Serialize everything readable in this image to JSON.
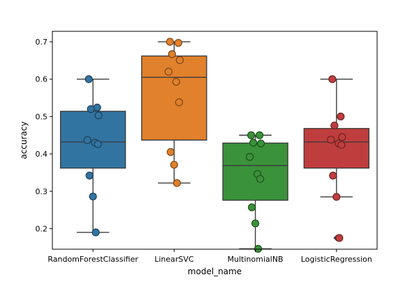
{
  "chart_data": {
    "type": "box",
    "overlay": "strip",
    "xlabel": "model_name",
    "ylabel": "accuracy",
    "ylim": [
      0.145,
      0.728
    ],
    "yticks": [
      0.2,
      0.3,
      0.4,
      0.5,
      0.6,
      0.7
    ],
    "ytick_labels": [
      "0.2",
      "0.3",
      "0.4",
      "0.5",
      "0.6",
      "0.7"
    ],
    "categories": [
      "RandomForestClassifier",
      "LinearSVC",
      "MultinomialNB",
      "LogisticRegression"
    ],
    "colors": [
      "#3274a1",
      "#e1812c",
      "#3a923a",
      "#c03d3e"
    ],
    "boxes": [
      {
        "q1": 0.362,
        "median": 0.432,
        "q3": 0.514,
        "whisker_low": 0.19,
        "whisker_high": 0.6,
        "fliers": []
      },
      {
        "q1": 0.437,
        "median": 0.605,
        "q3": 0.662,
        "whisker_low": 0.322,
        "whisker_high": 0.7,
        "fliers": []
      },
      {
        "q1": 0.276,
        "median": 0.369,
        "q3": 0.429,
        "whisker_low": 0.146,
        "whisker_high": 0.45,
        "fliers": []
      },
      {
        "q1": 0.362,
        "median": 0.432,
        "q3": 0.468,
        "whisker_low": 0.285,
        "whisker_high": 0.6,
        "fliers": [
          0.175
        ]
      }
    ],
    "points": [
      [
        0.6,
        0.524,
        0.52,
        0.503,
        0.437,
        0.43,
        0.426,
        0.342,
        0.286,
        0.19
      ],
      [
        0.7,
        0.697,
        0.667,
        0.651,
        0.62,
        0.593,
        0.538,
        0.405,
        0.371,
        0.322
      ],
      [
        0.45,
        0.45,
        0.43,
        0.428,
        0.392,
        0.346,
        0.333,
        0.257,
        0.214,
        0.146
      ],
      [
        0.6,
        0.5,
        0.476,
        0.445,
        0.438,
        0.428,
        0.424,
        0.342,
        0.285,
        0.175
      ]
    ],
    "grid": false,
    "legend": "none"
  }
}
